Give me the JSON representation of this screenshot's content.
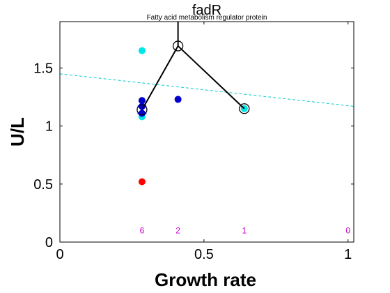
{
  "chart_data": {
    "type": "scatter",
    "title": "fadR",
    "subtitle": "Fatty acid metabolism regulator protein",
    "xlabel": "Growth rate",
    "ylabel": "U/L",
    "xlim": [
      0,
      1.02
    ],
    "ylim": [
      0,
      1.9
    ],
    "xticks": [
      0,
      0.5,
      1
    ],
    "xtick_labels": [
      "0",
      "0.5",
      "1"
    ],
    "yticks": [
      0,
      0.5,
      1,
      1.5
    ],
    "ytick_labels": [
      "0",
      "0.5",
      "1",
      "1.5"
    ],
    "grid": false,
    "colors": {
      "cyan": "#00e5e5",
      "blue": "#0000cc",
      "red": "#ff0000",
      "trend": "#00cccc",
      "path": "#000000",
      "count": "#cc00cc"
    },
    "points": [
      {
        "x": 0.285,
        "y": 1.65,
        "color": "cyan"
      },
      {
        "x": 0.285,
        "y": 1.08,
        "color": "cyan"
      },
      {
        "x": 0.285,
        "y": 1.22,
        "color": "blue"
      },
      {
        "x": 0.285,
        "y": 1.17,
        "color": "blue"
      },
      {
        "x": 0.285,
        "y": 1.11,
        "color": "blue"
      },
      {
        "x": 0.285,
        "y": 0.52,
        "color": "red"
      },
      {
        "x": 0.41,
        "y": 1.23,
        "color": "blue"
      },
      {
        "x": 0.64,
        "y": 1.15,
        "color": "cyan"
      }
    ],
    "path": {
      "x": [
        0.285,
        0.41,
        0.64
      ],
      "y": [
        1.14,
        1.69,
        1.15
      ]
    },
    "vertical_line": {
      "x": 0.41,
      "y_from": 1.69,
      "y_to": 1.9
    },
    "cross_marker": {
      "x": 0.285,
      "y": 1.14
    },
    "trend_line": {
      "x": [
        0,
        1.02
      ],
      "y": [
        1.45,
        1.17
      ]
    },
    "counts": [
      {
        "x": 0.285,
        "label": "6"
      },
      {
        "x": 0.41,
        "label": "2"
      },
      {
        "x": 0.64,
        "label": "1"
      },
      {
        "x": 1.0,
        "label": "0"
      }
    ],
    "count_y": 0.1
  }
}
